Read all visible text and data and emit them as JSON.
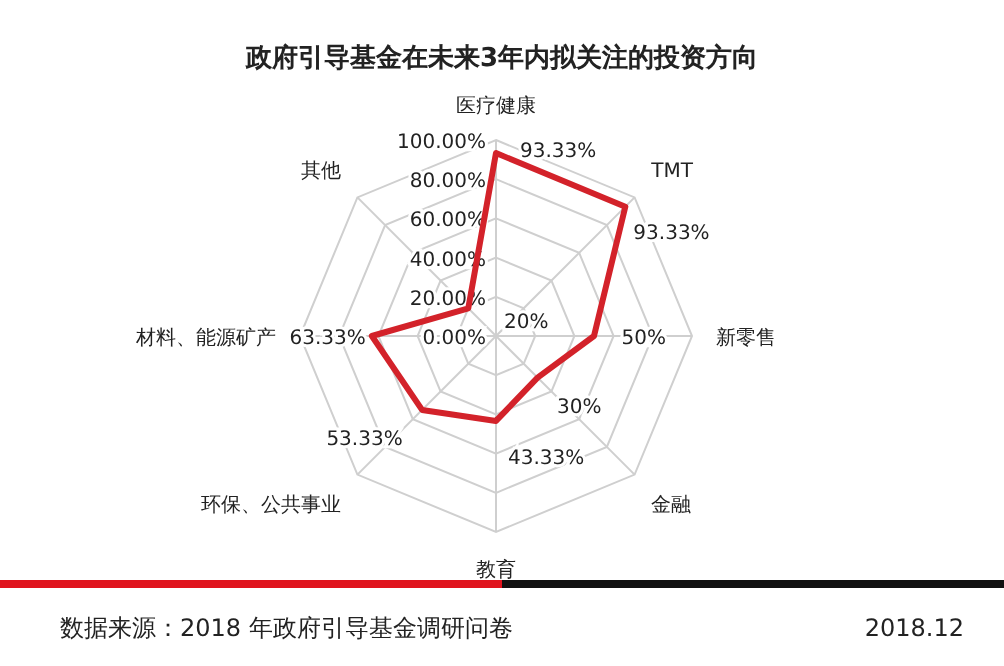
{
  "chart_data": {
    "type": "radar",
    "title": "政府引导基金在未来3年内拟关注的投资方向",
    "categories": [
      "医疗健康",
      "TMT",
      "新零售",
      "金融",
      "教育",
      "环保、公共事业",
      "材料、能源矿产",
      "其他"
    ],
    "series": [
      {
        "color": "#d3222a",
        "values": [
          93.33,
          93.33,
          50,
          30,
          43.33,
          53.33,
          63.33,
          20
        ],
        "value_labels": [
          "93.33%",
          "93.33%",
          "50%",
          "30%",
          "43.33%",
          "53.33%",
          "63.33%",
          "20%"
        ]
      }
    ],
    "ylim": [
      0,
      100
    ],
    "yticks": [
      {
        "value": 0,
        "label": "0.00%"
      },
      {
        "value": 20,
        "label": "20.00%"
      },
      {
        "value": 40,
        "label": "40.00%"
      },
      {
        "value": 60,
        "label": "60.00%"
      },
      {
        "value": 80,
        "label": "80.00%"
      },
      {
        "value": 100,
        "label": "100.00%"
      }
    ],
    "grid": true,
    "marker": "none",
    "line_style": "solid",
    "annotations": [
      "数据来源：2018 年政府引导基金调研问卷",
      "2018.12"
    ]
  }
}
